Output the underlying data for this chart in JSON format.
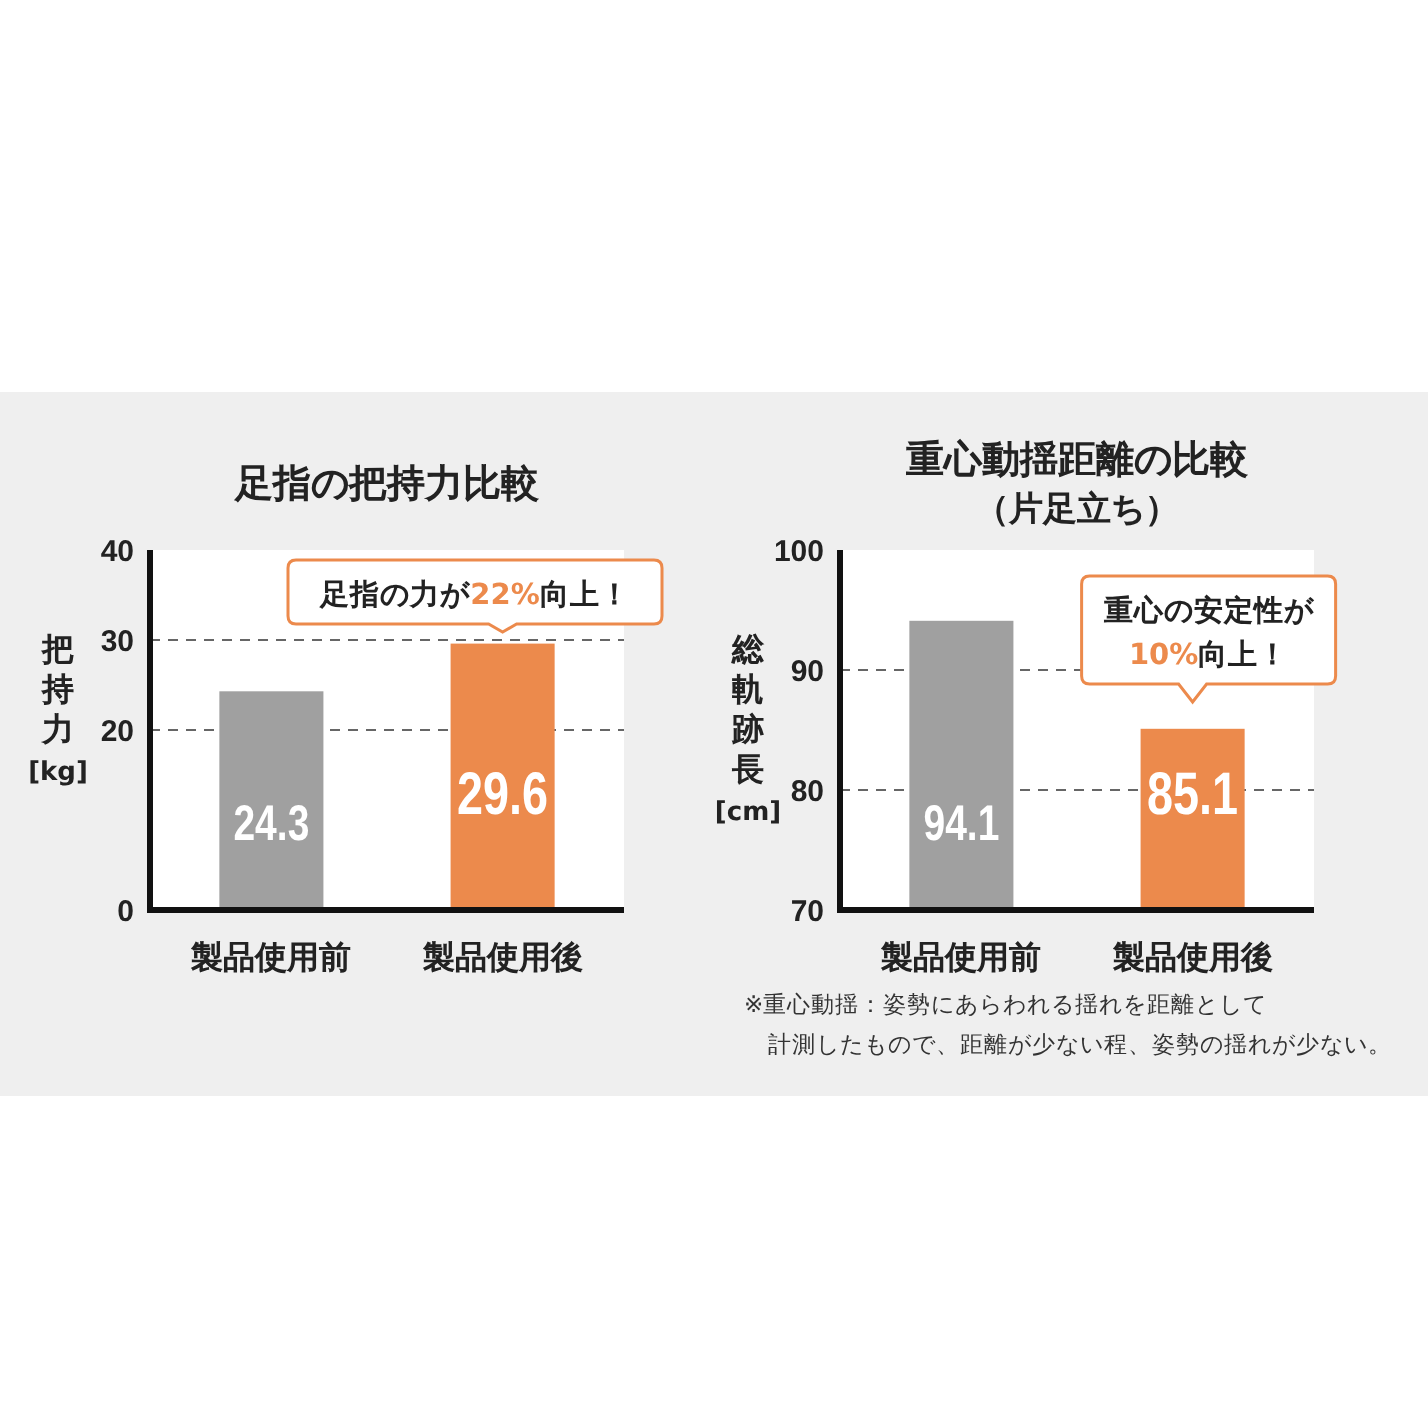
{
  "chart_data": [
    {
      "type": "bar",
      "title": "足指の把持力比較",
      "ylabel": "把持力[kg]",
      "categories": [
        "製品使用前",
        "製品使用後"
      ],
      "values": [
        24.3,
        29.6
      ],
      "colors": [
        "#a0a0a0",
        "#ec8a4c"
      ],
      "ylim": [
        0,
        40
      ],
      "yticks": [
        0,
        20,
        30,
        40
      ],
      "grid": "y",
      "data_labels": true,
      "annotations": [
        "足指の力が22%向上！"
      ]
    },
    {
      "type": "bar",
      "title": "重心動揺距離の比較",
      "subtitle": "（片足立ち）",
      "ylabel": "総軌跡長[cm]",
      "categories": [
        "製品使用前",
        "製品使用後"
      ],
      "values": [
        94.1,
        85.1
      ],
      "colors": [
        "#a0a0a0",
        "#ec8a4c"
      ],
      "ylim": [
        70,
        100
      ],
      "yticks": [
        70,
        80,
        90,
        100
      ],
      "grid": "y",
      "data_labels": true,
      "annotations": [
        "重心の安定性が10%向上！",
        "※重心動揺：姿勢にあらわれる揺れを距離として計測したもので、距離が少ない程、姿勢の揺れが少ない。"
      ]
    }
  ]
}
